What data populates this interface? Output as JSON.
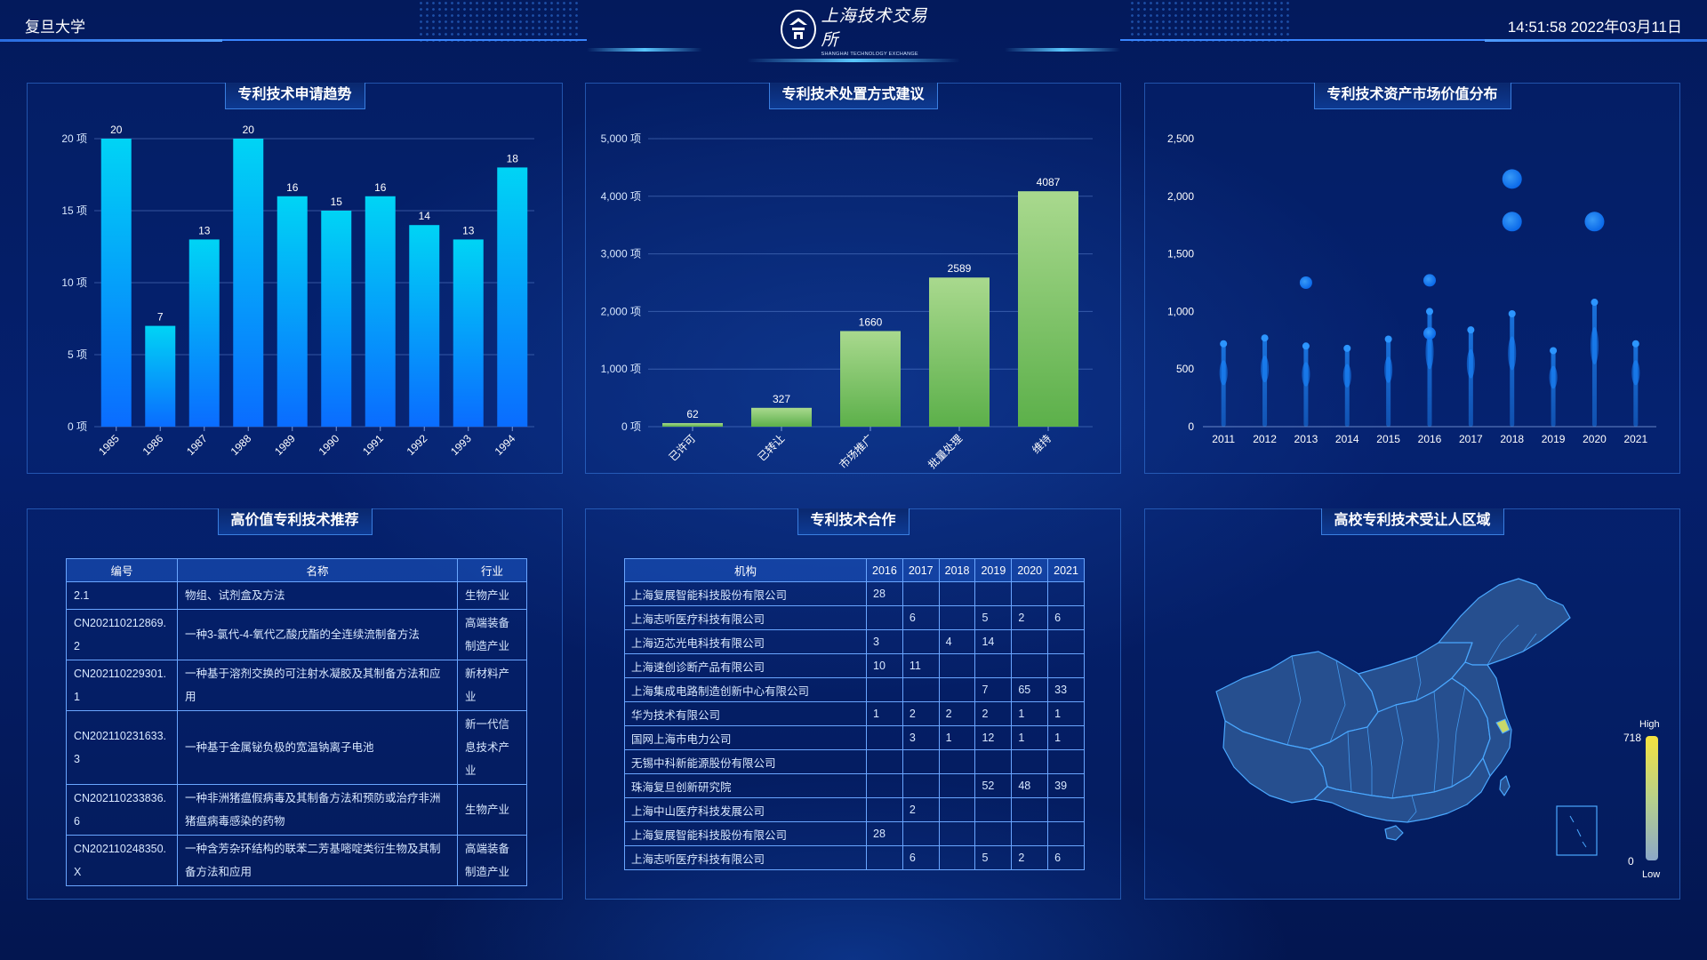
{
  "header": {
    "org": "复旦大学",
    "datetime": "14:51:58 2022年03月11日",
    "logo_cn": "上海技术交易所",
    "logo_en": "SHANGHAI TECHNOLOGY EXCHANGE"
  },
  "panels": {
    "trend_title": "专利技术申请趋势",
    "disposal_title": "专利技术处置方式建议",
    "value_title": "专利技术资产市场价值分布",
    "recommend_title": "高价值专利技术推荐",
    "coop_title": "专利技术合作",
    "region_title": "高校专利技术受让人区域"
  },
  "chart_data": [
    {
      "type": "bar",
      "title": "专利技术申请趋势",
      "categories": [
        "1985",
        "1986",
        "1987",
        "1988",
        "1989",
        "1990",
        "1991",
        "1992",
        "1993",
        "1994"
      ],
      "values": [
        20,
        7,
        13,
        20,
        16,
        15,
        16,
        14,
        13,
        18
      ],
      "yticks": [
        "0 项",
        "5 项",
        "10 项",
        "15 项",
        "20 项"
      ],
      "ylim": [
        0,
        20
      ],
      "colors": [
        "#00d4f5",
        "#0a6cff"
      ]
    },
    {
      "type": "bar",
      "title": "专利技术处置方式建议",
      "categories": [
        "已许可",
        "已转让",
        "市场推广",
        "批量处理",
        "维持"
      ],
      "values": [
        62,
        327,
        1660,
        2589,
        4087
      ],
      "yticks": [
        "0 项",
        "1,000 项",
        "2,000 项",
        "3,000 项",
        "4,000 项",
        "5,000 项"
      ],
      "ylim": [
        0,
        5000
      ],
      "colors": [
        "#a9d98e",
        "#5cb04a"
      ]
    },
    {
      "type": "scatter",
      "title": "专利技术资产市场价值分布",
      "categories": [
        "2011",
        "2012",
        "2013",
        "2014",
        "2015",
        "2016",
        "2017",
        "2018",
        "2019",
        "2020",
        "2021"
      ],
      "yticks": [
        "0",
        "500",
        "1,000",
        "1,500",
        "2,000",
        "2,500"
      ],
      "ylim": [
        0,
        2500
      ],
      "tops": [
        720,
        770,
        700,
        680,
        760,
        1000,
        840,
        980,
        660,
        1080,
        720
      ],
      "outliers": [
        {
          "x": "2013",
          "y": 1250
        },
        {
          "x": "2016",
          "y": 1270
        },
        {
          "x": "2016",
          "y": 810
        },
        {
          "x": "2018",
          "y": 2150
        },
        {
          "x": "2018",
          "y": 1780
        },
        {
          "x": "2020",
          "y": 1780
        }
      ]
    }
  ],
  "recommend": {
    "headers": [
      "编号",
      "名称",
      "行业"
    ],
    "rows": [
      {
        "id": "2.1",
        "name": "物组、试剂盒及方法",
        "industry": "生物产业"
      },
      {
        "id": "CN202110212869.2",
        "name": "一种3-氯代-4-氧代乙酸戊酯的全连续流制备方法",
        "industry": "高端装备制造产业"
      },
      {
        "id": "CN202110229301.1",
        "name": "一种基于溶剂交换的可注射水凝胶及其制备方法和应用",
        "industry": "新材料产业"
      },
      {
        "id": "CN202110231633.3",
        "name": "一种基于金属铋负极的宽温钠离子电池",
        "industry": "新一代信息技术产业"
      },
      {
        "id": "CN202110233836.6",
        "name": "一种非洲猪瘟假病毒及其制备方法和预防或治疗非洲猪瘟病毒感染的药物",
        "industry": "生物产业"
      },
      {
        "id": "CN202110248350.X",
        "name": "一种含芳杂环结构的联苯二芳基嘧啶类衍生物及其制备方法和应用",
        "industry": "高端装备制造产业"
      }
    ]
  },
  "coop": {
    "headers": [
      "机构",
      "2016",
      "2017",
      "2018",
      "2019",
      "2020",
      "2021"
    ],
    "rows": [
      [
        "上海复展智能科技股份有限公司",
        "28",
        "",
        "",
        "",
        "",
        ""
      ],
      [
        "上海志听医疗科技有限公司",
        "",
        "6",
        "",
        "5",
        "2",
        "6"
      ],
      [
        "上海迈芯光电科技有限公司",
        "3",
        "",
        "4",
        "14",
        "",
        ""
      ],
      [
        "上海速创诊断产品有限公司",
        "10",
        "11",
        "",
        "",
        "",
        ""
      ],
      [
        "上海集成电路制造创新中心有限公司",
        "",
        "",
        "",
        "7",
        "65",
        "33"
      ],
      [
        "华为技术有限公司",
        "1",
        "2",
        "2",
        "2",
        "1",
        "1"
      ],
      [
        "国网上海市电力公司",
        "",
        "3",
        "1",
        "12",
        "1",
        "1"
      ],
      [
        "无锡中科新能源股份有限公司",
        "",
        "",
        "",
        "",
        "",
        ""
      ],
      [
        "珠海复旦创新研究院",
        "",
        "",
        "",
        "52",
        "48",
        "39"
      ],
      [
        "上海中山医疗科技发展公司",
        "",
        "2",
        "",
        "",
        "",
        ""
      ],
      [
        "上海复展智能科技股份有限公司",
        "28",
        "",
        "",
        "",
        "",
        ""
      ],
      [
        "上海志听医疗科技有限公司",
        "",
        "6",
        "",
        "5",
        "2",
        "6"
      ]
    ]
  },
  "map": {
    "legend_high_label": "High",
    "legend_low_label": "Low",
    "legend_max": "718",
    "legend_min": "0",
    "colors": {
      "base": "#264f8f",
      "border": "#4aa8ff",
      "highlight": "#c8d86a"
    }
  }
}
